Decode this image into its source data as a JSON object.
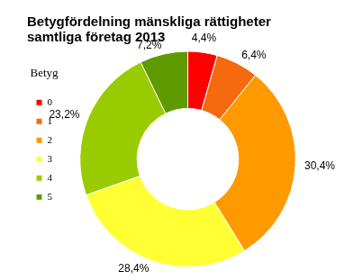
{
  "chart_data": {
    "type": "doughnut",
    "title": "Betygfördelning mänskliga rättigheter\nsamtliga företag 2013",
    "legend_title": "Betyg",
    "categories": [
      "0",
      "1",
      "2",
      "3",
      "4",
      "5"
    ],
    "values": [
      4.4,
      6.4,
      30.4,
      28.4,
      23.2,
      7.2
    ],
    "value_labels": [
      "4,4%",
      "6,4%",
      "30,4%",
      "28,4%",
      "23,2%",
      "7,2%"
    ],
    "colors": [
      "#ff0000",
      "#f56a0f",
      "#ff9900",
      "#ffff33",
      "#99cc00",
      "#5f9a00"
    ],
    "data_labels": true,
    "legend": "left"
  }
}
